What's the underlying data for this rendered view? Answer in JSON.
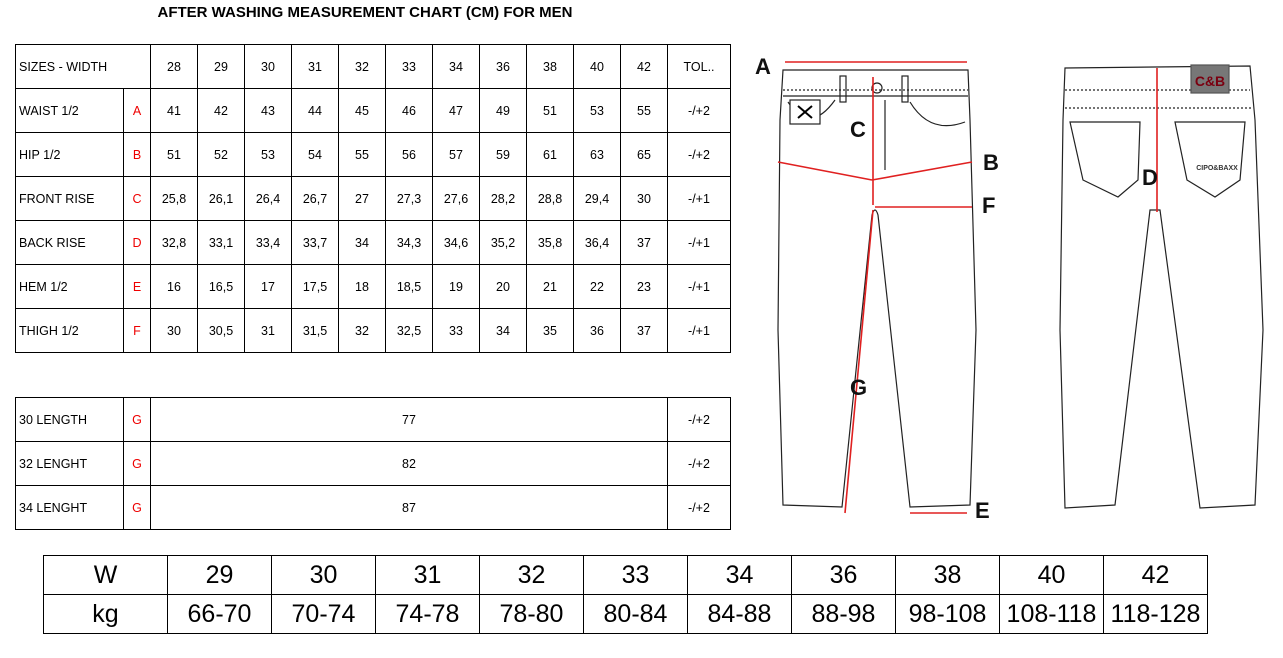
{
  "title": "AFTER WASHING MEASUREMENT CHART (CM) FOR MEN",
  "size_table": {
    "header": {
      "label": "SIZES - WIDTH",
      "sizes": [
        "28",
        "29",
        "30",
        "31",
        "32",
        "33",
        "34",
        "36",
        "38",
        "40",
        "42"
      ],
      "tol": "TOL.."
    },
    "rows": [
      {
        "label": "WAIST 1/2",
        "letter": "A",
        "values": [
          "41",
          "42",
          "43",
          "44",
          "45",
          "46",
          "47",
          "49",
          "51",
          "53",
          "55"
        ],
        "tol": "-/+2"
      },
      {
        "label": "HIP 1/2",
        "letter": "B",
        "values": [
          "51",
          "52",
          "53",
          "54",
          "55",
          "56",
          "57",
          "59",
          "61",
          "63",
          "65"
        ],
        "tol": "-/+2"
      },
      {
        "label": "FRONT RISE",
        "letter": "C",
        "values": [
          "25,8",
          "26,1",
          "26,4",
          "26,7",
          "27",
          "27,3",
          "27,6",
          "28,2",
          "28,8",
          "29,4",
          "30"
        ],
        "tol": "-/+1"
      },
      {
        "label": "BACK RISE",
        "letter": "D",
        "values": [
          "32,8",
          "33,1",
          "33,4",
          "33,7",
          "34",
          "34,3",
          "34,6",
          "35,2",
          "35,8",
          "36,4",
          "37"
        ],
        "tol": "-/+1"
      },
      {
        "label": "HEM 1/2",
        "letter": "E",
        "values": [
          "16",
          "16,5",
          "17",
          "17,5",
          "18",
          "18,5",
          "19",
          "20",
          "21",
          "22",
          "23"
        ],
        "tol": "-/+1"
      },
      {
        "label": "THIGH 1/2",
        "letter": "F",
        "values": [
          "30",
          "30,5",
          "31",
          "31,5",
          "32",
          "32,5",
          "33",
          "34",
          "35",
          "36",
          "37"
        ],
        "tol": "-/+1"
      }
    ]
  },
  "length_table": [
    {
      "label": "30 LENGTH",
      "letter": "G",
      "value": "77",
      "tol": "-/+2"
    },
    {
      "label": "32 LENGHT",
      "letter": "G",
      "value": "82",
      "tol": "-/+2"
    },
    {
      "label": "34 LENGHT",
      "letter": "G",
      "value": "87",
      "tol": "-/+2"
    }
  ],
  "weight_table": {
    "row1": {
      "label": "W",
      "values": [
        "29",
        "30",
        "31",
        "32",
        "33",
        "34",
        "36",
        "38",
        "40",
        "42"
      ]
    },
    "row2": {
      "label": "kg",
      "values": [
        "66-70",
        "70-74",
        "74-78",
        "78-80",
        "80-84",
        "84-88",
        "88-98",
        "98-108",
        "108-118",
        "118-128"
      ]
    }
  },
  "diagram": {
    "labels": {
      "a": "A",
      "b": "B",
      "c": "C",
      "d": "D",
      "e": "E",
      "f": "F",
      "g": "G"
    },
    "logo": "C&B",
    "pocket_text": "CIPO&BAXX",
    "measure_color": "#e02020"
  }
}
